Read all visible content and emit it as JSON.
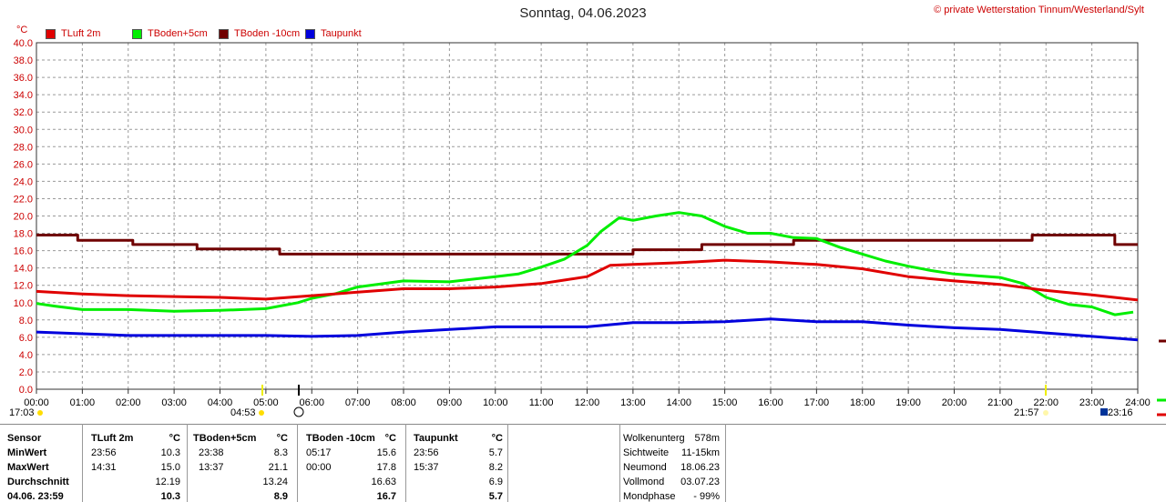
{
  "header": {
    "title": "Sonntag, 04.06.2023",
    "copyright": "© private Wetterstation Tinnum/Westerland/Sylt",
    "unit": "°C"
  },
  "legend": [
    {
      "label": "TLuft 2m",
      "color": "#e00000"
    },
    {
      "label": "TBoden+5cm",
      "color": "#00ee00"
    },
    {
      "label": "TBoden -10cm",
      "color": "#700000"
    },
    {
      "label": "Taupunkt",
      "color": "#0000dd"
    }
  ],
  "chart_data": {
    "type": "line",
    "title": "Sonntag, 04.06.2023",
    "ylabel": "°C",
    "ylim": [
      0,
      40
    ],
    "xlim": [
      "00:00",
      "24:00"
    ],
    "grid": true,
    "y_ticks": [
      "0.0",
      "2.0",
      "4.0",
      "6.0",
      "8.0",
      "10.0",
      "12.0",
      "14.0",
      "16.0",
      "18.0",
      "20.0",
      "22.0",
      "24.0",
      "26.0",
      "28.0",
      "30.0",
      "32.0",
      "34.0",
      "36.0",
      "38.0",
      "40.0"
    ],
    "x_ticks": [
      "00:00",
      "01:00",
      "02:00",
      "03:00",
      "04:00",
      "05:00",
      "06:00",
      "07:00",
      "08:00",
      "09:00",
      "10:00",
      "11:00",
      "12:00",
      "13:00",
      "14:00",
      "15:00",
      "16:00",
      "17:00",
      "18:00",
      "19:00",
      "20:00",
      "21:00",
      "22:00",
      "23:00",
      "24:00"
    ],
    "series": [
      {
        "name": "TLuft 2m",
        "color": "#e00000",
        "x": [
          0,
          1,
          2,
          3,
          4,
          5,
          6,
          7,
          8,
          9,
          10,
          11,
          11.5,
          12,
          12.5,
          13,
          14,
          15,
          16,
          17,
          18,
          19,
          20,
          21,
          22,
          23,
          24
        ],
        "y": [
          11.3,
          11.0,
          10.8,
          10.7,
          10.6,
          10.4,
          10.8,
          11.2,
          11.6,
          11.6,
          11.8,
          12.2,
          12.6,
          13.0,
          14.3,
          14.4,
          14.6,
          14.9,
          14.7,
          14.4,
          13.9,
          13.0,
          12.5,
          12.1,
          11.4,
          10.9,
          10.3
        ]
      },
      {
        "name": "TBoden+5cm",
        "color": "#00ee00",
        "x": [
          0,
          0.4,
          1,
          2,
          3,
          4,
          5,
          5.7,
          6,
          6.5,
          7,
          8,
          9,
          10,
          10.5,
          11,
          11.5,
          12,
          12.3,
          12.7,
          13,
          13.5,
          14,
          14.5,
          15,
          15.5,
          16,
          16.5,
          17,
          17.5,
          18,
          18.5,
          19,
          19.5,
          20,
          20.5,
          21,
          21.5,
          22,
          22.5,
          23,
          23.5,
          23.9
        ],
        "y": [
          9.9,
          9.6,
          9.2,
          9.2,
          9.0,
          9.1,
          9.3,
          10.0,
          10.5,
          11.0,
          11.8,
          12.5,
          12.4,
          13.0,
          13.3,
          14.1,
          15.0,
          16.6,
          18.2,
          19.8,
          19.5,
          20.0,
          20.4,
          20.0,
          18.8,
          18.0,
          18.0,
          17.5,
          17.4,
          16.4,
          15.6,
          14.8,
          14.2,
          13.7,
          13.3,
          13.1,
          12.9,
          12.2,
          10.6,
          9.8,
          9.5,
          8.6,
          8.9
        ]
      },
      {
        "name": "TBoden -10cm",
        "color": "#700000",
        "x": [
          0,
          0.9,
          0.9,
          2.1,
          2.1,
          3.5,
          3.5,
          5.3,
          5.3,
          13,
          13,
          14.5,
          14.5,
          16.5,
          16.5,
          21.7,
          21.7,
          23.5,
          23.5,
          24
        ],
        "y": [
          17.8,
          17.8,
          17.2,
          17.2,
          16.7,
          16.7,
          16.2,
          16.2,
          15.6,
          15.6,
          16.1,
          16.1,
          16.7,
          16.7,
          17.2,
          17.2,
          17.8,
          17.8,
          16.7,
          16.7
        ]
      },
      {
        "name": "Taupunkt",
        "color": "#0000dd",
        "x": [
          0,
          1,
          2,
          3,
          4,
          5,
          6,
          7,
          8,
          9,
          10,
          11,
          12,
          13,
          14,
          15,
          16,
          17,
          18,
          19,
          20,
          21,
          22,
          23,
          24
        ],
        "y": [
          6.6,
          6.4,
          6.2,
          6.2,
          6.2,
          6.2,
          6.1,
          6.2,
          6.6,
          6.9,
          7.2,
          7.2,
          7.2,
          7.7,
          7.7,
          7.8,
          8.1,
          7.8,
          7.8,
          7.4,
          7.1,
          6.9,
          6.5,
          6.1,
          5.7
        ]
      }
    ]
  },
  "sun_markers": {
    "left_time": "17:03",
    "sunrise": "04:53",
    "sunset": "21:57",
    "right_time": "23:16"
  },
  "stats": {
    "headers": [
      "Sensor",
      "TLuft 2m",
      "°C",
      "TBoden+5cm",
      "°C",
      "TBoden -10cm",
      "°C",
      "Taupunkt",
      "°C"
    ],
    "rows": [
      {
        "label": "MinWert",
        "c": [
          "23:56",
          "10.3",
          "23:38",
          "8.3",
          "05:17",
          "15.6",
          "23:56",
          "5.7"
        ]
      },
      {
        "label": "MaxWert",
        "c": [
          "14:31",
          "15.0",
          "13:37",
          "21.1",
          "00:00",
          "17.8",
          "15:37",
          "8.2"
        ]
      },
      {
        "label": "Durchschnitt",
        "c": [
          "",
          "12.19",
          "",
          "13.24",
          "",
          "16.63",
          "",
          "6.9"
        ]
      },
      {
        "label": "04.06. 23:59",
        "c": [
          "",
          "10.3",
          "",
          "8.9",
          "",
          "16.7",
          "",
          "5.7"
        ]
      }
    ]
  },
  "info": [
    {
      "label": "Wolkenunterg",
      "value": "578m"
    },
    {
      "label": "Sichtweite",
      "value": "11-15km"
    },
    {
      "label": "Neumond",
      "value": "18.06.23"
    },
    {
      "label": "Vollmond",
      "value": "03.07.23"
    },
    {
      "label": "Mondphase",
      "value": "- 99%"
    }
  ]
}
